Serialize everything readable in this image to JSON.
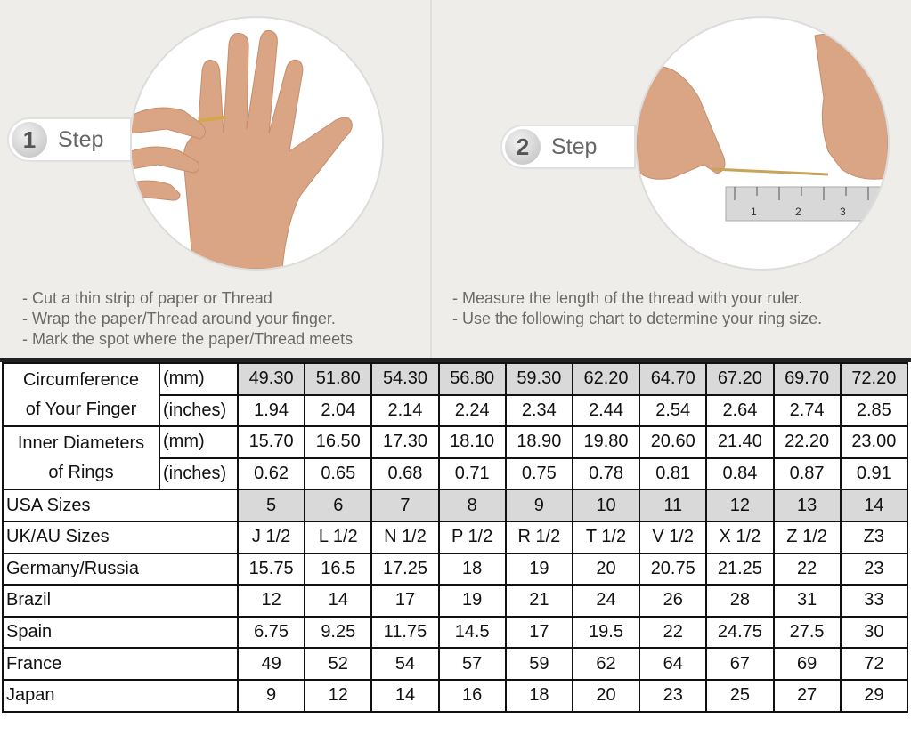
{
  "steps": [
    {
      "number": "1",
      "label": "Step",
      "bullets": [
        "- Cut a thin strip of paper or Thread",
        "- Wrap the paper/Thread around your finger.",
        "- Mark the spot where the paper/Thread meets"
      ]
    },
    {
      "number": "2",
      "label": "Step",
      "bullets": [
        "- Measure the length of the thread with your ruler.",
        "- Use the following chart to determine your ring size."
      ]
    }
  ],
  "ruler_marks": [
    "1",
    "2",
    "3"
  ],
  "table": {
    "circumference": {
      "label_line1": "Circumference",
      "label_line2": "of Your Finger",
      "unit_mm": "(mm)",
      "unit_in": "(inches)",
      "mm": [
        "49.30",
        "51.80",
        "54.30",
        "56.80",
        "59.30",
        "62.20",
        "64.70",
        "67.20",
        "69.70",
        "72.20"
      ],
      "inches": [
        "1.94",
        "2.04",
        "2.14",
        "2.24",
        "2.34",
        "2.44",
        "2.54",
        "2.64",
        "2.74",
        "2.85"
      ]
    },
    "inner_diameter": {
      "label_line1": "Inner Diameters",
      "label_line2": "of Rings",
      "unit_mm": "(mm)",
      "unit_in": "(inches)",
      "mm": [
        "15.70",
        "16.50",
        "17.30",
        "18.10",
        "18.90",
        "19.80",
        "20.60",
        "21.40",
        "22.20",
        "23.00"
      ],
      "inches": [
        "0.62",
        "0.65",
        "0.68",
        "0.71",
        "0.75",
        "0.78",
        "0.81",
        "0.84",
        "0.87",
        "0.91"
      ]
    },
    "rows": [
      {
        "label": "USA Sizes",
        "values": [
          "5",
          "6",
          "7",
          "8",
          "9",
          "10",
          "11",
          "12",
          "13",
          "14"
        ]
      },
      {
        "label": "UK/AU Sizes",
        "values": [
          "J 1/2",
          "L 1/2",
          "N 1/2",
          "P 1/2",
          "R 1/2",
          "T 1/2",
          "V 1/2",
          "X 1/2",
          "Z 1/2",
          "Z3"
        ]
      },
      {
        "label": "Germany/Russia",
        "values": [
          "15.75",
          "16.5",
          "17.25",
          "18",
          "19",
          "20",
          "20.75",
          "21.25",
          "22",
          "23"
        ]
      },
      {
        "label": "Brazil",
        "values": [
          "12",
          "14",
          "17",
          "19",
          "21",
          "24",
          "26",
          "28",
          "31",
          "33"
        ]
      },
      {
        "label": "Spain",
        "values": [
          "6.75",
          "9.25",
          "11.75",
          "14.5",
          "17",
          "19.5",
          "22",
          "24.75",
          "27.5",
          "30"
        ]
      },
      {
        "label": "France",
        "values": [
          "49",
          "52",
          "54",
          "57",
          "59",
          "62",
          "64",
          "67",
          "69",
          "72"
        ]
      },
      {
        "label": "Japan",
        "values": [
          "9",
          "12",
          "14",
          "16",
          "18",
          "20",
          "23",
          "25",
          "27",
          "29"
        ]
      }
    ],
    "highlight_color": "#d9d9d9"
  }
}
